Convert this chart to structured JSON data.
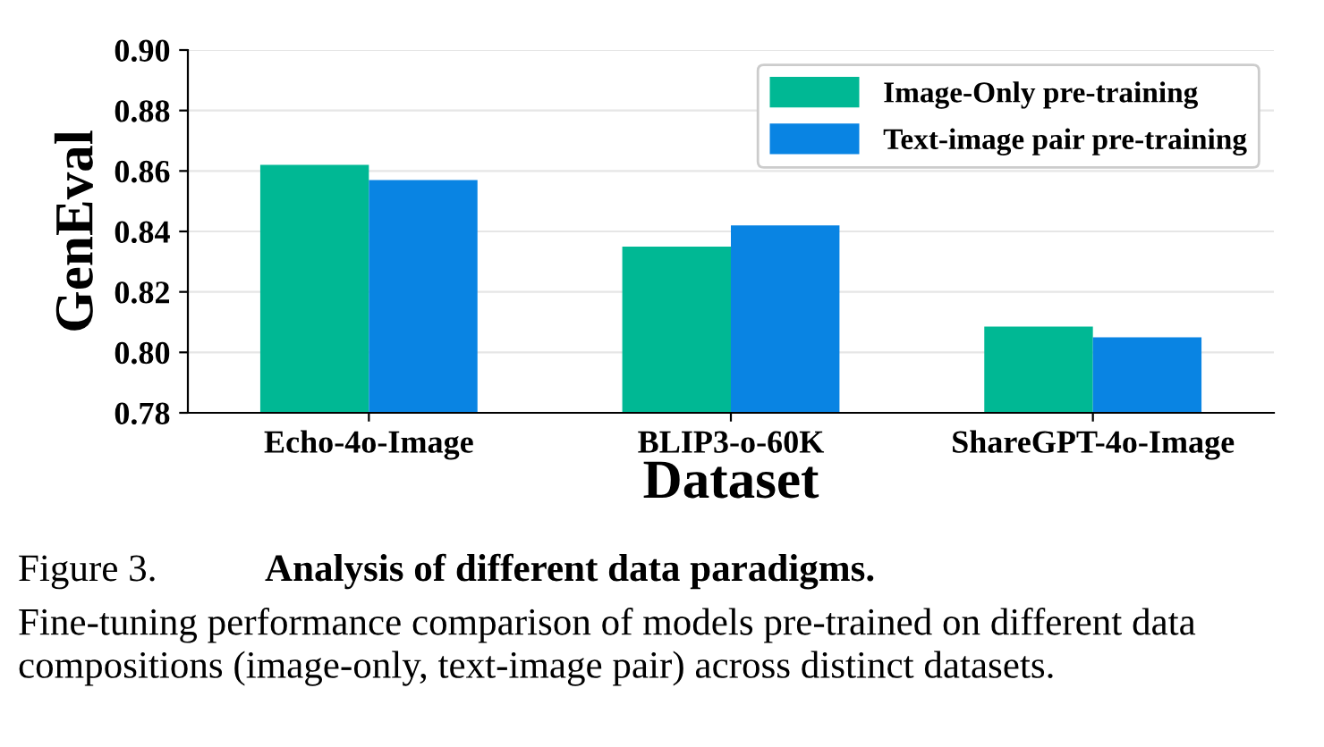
{
  "chart_data": {
    "type": "bar",
    "xlabel": "Dataset",
    "ylabel": "GenEval",
    "categories": [
      "Echo-4o-Image",
      "BLIP3-o-60K",
      "ShareGPT-4o-Image"
    ],
    "series": [
      {
        "name": "Image-Only pre-training",
        "color": "#00b894",
        "values": [
          0.862,
          0.835,
          0.8085
        ]
      },
      {
        "name": "Text-image pair pre-training",
        "color": "#0984e3",
        "values": [
          0.857,
          0.842,
          0.805
        ]
      }
    ],
    "ylim": [
      0.78,
      0.9
    ],
    "yticks": [
      {
        "value": 0.78,
        "label": "0.78"
      },
      {
        "value": 0.8,
        "label": "0.80"
      },
      {
        "value": 0.82,
        "label": "0.82"
      },
      {
        "value": 0.84,
        "label": "0.84"
      },
      {
        "value": 0.86,
        "label": "0.86"
      },
      {
        "value": 0.88,
        "label": "0.88"
      },
      {
        "value": 0.9,
        "label": "0.90"
      }
    ],
    "grid": "y",
    "legend": "top right",
    "annotations": [
      "Figure 3.",
      "Analysis of different data paradigms.",
      "Fine-tuning performance comparison of models pre-trained on different data compositions (image-only, text-image pair) across distinct datasets."
    ]
  }
}
